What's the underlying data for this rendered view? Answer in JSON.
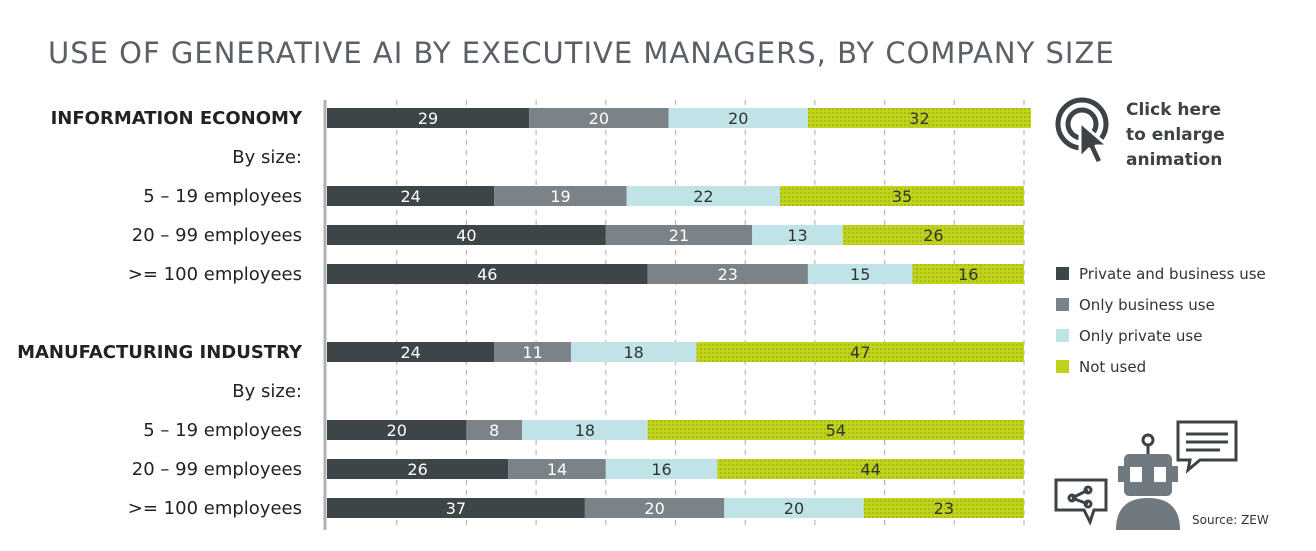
{
  "title": "USE OF GENERATIVE AI BY EXECUTIVE MANAGERS, BY COMPANY SIZE",
  "click_hint": "Click here to enlarge animation",
  "source": "Source: ZEW",
  "colors": {
    "private_and_business": "#3d4549",
    "only_business": "#7b8288",
    "only_private": "#bfe3e6",
    "not_used": "#bfd31c",
    "grid": "#b8b8b8",
    "axis": "#b0b0b0",
    "label_dark": "#ffffff",
    "label_light": "#333333"
  },
  "chart_data": {
    "type": "bar",
    "orientation": "horizontal",
    "stacked": true,
    "xlim": [
      0,
      100
    ],
    "grid": true,
    "legend_position": "right",
    "series": [
      {
        "name": "Private and business use",
        "color": "#3d4549"
      },
      {
        "name": "Only business use",
        "color": "#7b8288"
      },
      {
        "name": "Only private use",
        "color": "#bfe3e6"
      },
      {
        "name": "Not used",
        "color": "#bfd31c"
      }
    ],
    "rows": [
      {
        "label": "INFORMATION ECONOMY",
        "bold": true,
        "values": [
          29,
          20,
          20,
          32
        ]
      },
      {
        "label": "By size:",
        "bold": false,
        "values": null
      },
      {
        "label": "5 – 19 employees",
        "bold": false,
        "values": [
          24,
          19,
          22,
          35
        ]
      },
      {
        "label": "20 – 99 employees",
        "bold": false,
        "values": [
          40,
          21,
          13,
          26
        ]
      },
      {
        "label": ">= 100 employees",
        "bold": false,
        "values": [
          46,
          23,
          15,
          16
        ]
      },
      {
        "label": "",
        "bold": false,
        "values": null
      },
      {
        "label": "MANUFACTURING INDUSTRY",
        "bold": true,
        "values": [
          24,
          11,
          18,
          47
        ]
      },
      {
        "label": "By size:",
        "bold": false,
        "values": null
      },
      {
        "label": "5 – 19 employees",
        "bold": false,
        "values": [
          20,
          8,
          18,
          54
        ]
      },
      {
        "label": "20 – 99 employees",
        "bold": false,
        "values": [
          26,
          14,
          16,
          44
        ]
      },
      {
        "label": ">= 100 employees",
        "bold": false,
        "values": [
          37,
          20,
          20,
          23
        ]
      }
    ]
  }
}
